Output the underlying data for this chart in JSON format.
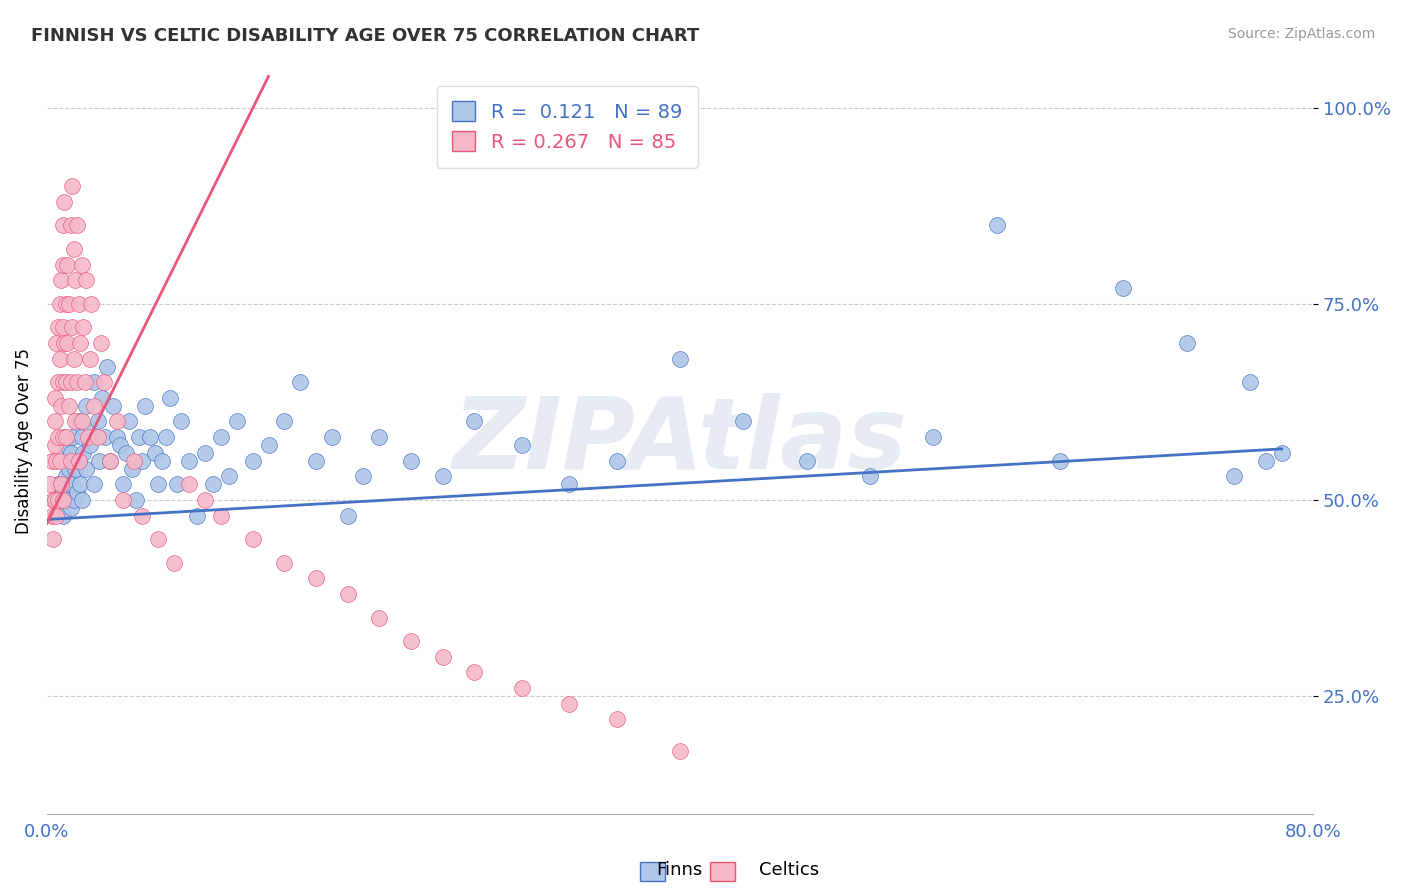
{
  "title": "FINNISH VS CELTIC DISABILITY AGE OVER 75 CORRELATION CHART",
  "source": "Source: ZipAtlas.com",
  "ylabel": "Disability Age Over 75",
  "xlim": [
    0.0,
    0.8
  ],
  "ylim": [
    0.1,
    1.05
  ],
  "yticks": [
    0.25,
    0.5,
    0.75,
    1.0
  ],
  "yticklabels": [
    "25.0%",
    "50.0%",
    "75.0%",
    "100.0%"
  ],
  "xtick_positions": [
    0.0,
    0.1,
    0.2,
    0.3,
    0.4,
    0.5,
    0.6,
    0.7,
    0.8
  ],
  "xtick_labels": [
    "0.0%",
    "",
    "",
    "",
    "",
    "",
    "",
    "",
    "80.0%"
  ],
  "R_finns": 0.121,
  "N_finns": 89,
  "R_celtics": 0.267,
  "N_celtics": 85,
  "color_finns": "#aec6e8",
  "color_celtics": "#f4b8c8",
  "line_color_finns": "#4472c4",
  "line_color_celtics": "#e8567a",
  "watermark": "ZIPAtlas",
  "finns_x": [
    0.005,
    0.007,
    0.008,
    0.01,
    0.01,
    0.01,
    0.012,
    0.012,
    0.013,
    0.014,
    0.015,
    0.015,
    0.016,
    0.016,
    0.017,
    0.018,
    0.019,
    0.02,
    0.02,
    0.021,
    0.022,
    0.022,
    0.023,
    0.025,
    0.025,
    0.027,
    0.028,
    0.03,
    0.03,
    0.032,
    0.033,
    0.035,
    0.037,
    0.038,
    0.04,
    0.042,
    0.044,
    0.046,
    0.048,
    0.05,
    0.052,
    0.054,
    0.056,
    0.058,
    0.06,
    0.062,
    0.065,
    0.068,
    0.07,
    0.073,
    0.075,
    0.078,
    0.082,
    0.085,
    0.09,
    0.095,
    0.1,
    0.105,
    0.11,
    0.115,
    0.12,
    0.13,
    0.14,
    0.15,
    0.16,
    0.17,
    0.18,
    0.19,
    0.2,
    0.21,
    0.23,
    0.25,
    0.27,
    0.3,
    0.33,
    0.36,
    0.4,
    0.44,
    0.48,
    0.52,
    0.56,
    0.6,
    0.64,
    0.68,
    0.72,
    0.75,
    0.76,
    0.77,
    0.78
  ],
  "finns_y": [
    0.5,
    0.52,
    0.49,
    0.55,
    0.51,
    0.48,
    0.53,
    0.57,
    0.5,
    0.54,
    0.49,
    0.56,
    0.52,
    0.58,
    0.5,
    0.54,
    0.51,
    0.6,
    0.55,
    0.52,
    0.58,
    0.5,
    0.56,
    0.54,
    0.62,
    0.57,
    0.59,
    0.65,
    0.52,
    0.6,
    0.55,
    0.63,
    0.58,
    0.67,
    0.55,
    0.62,
    0.58,
    0.57,
    0.52,
    0.56,
    0.6,
    0.54,
    0.5,
    0.58,
    0.55,
    0.62,
    0.58,
    0.56,
    0.52,
    0.55,
    0.58,
    0.63,
    0.52,
    0.6,
    0.55,
    0.48,
    0.56,
    0.52,
    0.58,
    0.53,
    0.6,
    0.55,
    0.57,
    0.6,
    0.65,
    0.55,
    0.58,
    0.48,
    0.53,
    0.58,
    0.55,
    0.53,
    0.6,
    0.57,
    0.52,
    0.55,
    0.68,
    0.6,
    0.55,
    0.53,
    0.58,
    0.85,
    0.55,
    0.77,
    0.7,
    0.53,
    0.65,
    0.55,
    0.56
  ],
  "celtics_x": [
    0.002,
    0.003,
    0.003,
    0.004,
    0.004,
    0.005,
    0.005,
    0.005,
    0.005,
    0.006,
    0.006,
    0.006,
    0.007,
    0.007,
    0.007,
    0.007,
    0.008,
    0.008,
    0.008,
    0.009,
    0.009,
    0.009,
    0.01,
    0.01,
    0.01,
    0.01,
    0.01,
    0.01,
    0.011,
    0.011,
    0.012,
    0.012,
    0.012,
    0.013,
    0.013,
    0.014,
    0.014,
    0.015,
    0.015,
    0.015,
    0.016,
    0.016,
    0.017,
    0.017,
    0.018,
    0.018,
    0.019,
    0.019,
    0.02,
    0.02,
    0.021,
    0.022,
    0.022,
    0.023,
    0.024,
    0.025,
    0.026,
    0.027,
    0.028,
    0.03,
    0.032,
    0.034,
    0.036,
    0.04,
    0.044,
    0.048,
    0.055,
    0.06,
    0.07,
    0.08,
    0.09,
    0.1,
    0.11,
    0.13,
    0.15,
    0.17,
    0.19,
    0.21,
    0.23,
    0.25,
    0.27,
    0.3,
    0.33,
    0.36,
    0.4
  ],
  "celtics_y": [
    0.52,
    0.48,
    0.55,
    0.5,
    0.45,
    0.6,
    0.57,
    0.63,
    0.5,
    0.55,
    0.48,
    0.7,
    0.65,
    0.58,
    0.72,
    0.5,
    0.68,
    0.75,
    0.55,
    0.62,
    0.78,
    0.52,
    0.8,
    0.72,
    0.65,
    0.58,
    0.85,
    0.5,
    0.88,
    0.7,
    0.75,
    0.65,
    0.58,
    0.8,
    0.7,
    0.75,
    0.62,
    0.85,
    0.65,
    0.55,
    0.9,
    0.72,
    0.82,
    0.68,
    0.78,
    0.6,
    0.85,
    0.65,
    0.75,
    0.55,
    0.7,
    0.8,
    0.6,
    0.72,
    0.65,
    0.78,
    0.58,
    0.68,
    0.75,
    0.62,
    0.58,
    0.7,
    0.65,
    0.55,
    0.6,
    0.5,
    0.55,
    0.48,
    0.45,
    0.42,
    0.52,
    0.5,
    0.48,
    0.45,
    0.42,
    0.4,
    0.38,
    0.35,
    0.32,
    0.3,
    0.28,
    0.26,
    0.24,
    0.22,
    0.18
  ],
  "celtics_line_x": [
    0.0,
    0.14
  ],
  "celtics_line_y": [
    0.47,
    1.04
  ],
  "finns_line_x": [
    0.0,
    0.78
  ],
  "finns_line_y": [
    0.475,
    0.565
  ]
}
